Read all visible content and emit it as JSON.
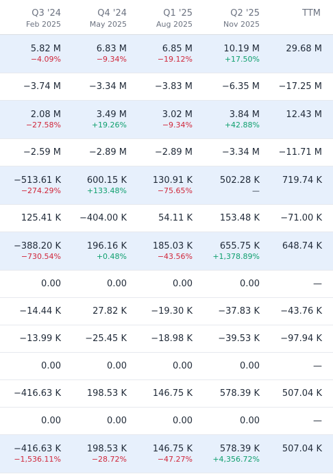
{
  "header": [
    {
      "quarter": "Q3 '24",
      "date": "Feb 2025"
    },
    {
      "quarter": "Q4 '24",
      "date": "May 2025"
    },
    {
      "quarter": "Q1 '25",
      "date": "Aug 2025"
    },
    {
      "quarter": "Q2 '25",
      "date": "Nov 2025"
    },
    {
      "quarter": "TTM",
      "date": ""
    }
  ],
  "rows": [
    {
      "shaded": true,
      "values": [
        "5.82 M",
        "6.83 M",
        "6.85 M",
        "10.19 M",
        "29.68 M"
      ],
      "changes": [
        "−4.09%",
        "−9.34%",
        "−19.12%",
        "+17.50%",
        ""
      ],
      "change_tones": [
        "neg",
        "neg",
        "neg",
        "pos",
        ""
      ]
    },
    {
      "shaded": false,
      "values": [
        "−3.74 M",
        "−3.34 M",
        "−3.83 M",
        "−6.35 M",
        "−17.25 M"
      ]
    },
    {
      "shaded": true,
      "values": [
        "2.08 M",
        "3.49 M",
        "3.02 M",
        "3.84 M",
        "12.43 M"
      ],
      "changes": [
        "−27.58%",
        "+19.26%",
        "−9.34%",
        "+42.88%",
        ""
      ],
      "change_tones": [
        "neg",
        "pos",
        "neg",
        "pos",
        ""
      ]
    },
    {
      "shaded": false,
      "values": [
        "−2.59 M",
        "−2.89 M",
        "−2.89 M",
        "−3.34 M",
        "−11.71 M"
      ]
    },
    {
      "shaded": true,
      "values": [
        "−513.61 K",
        "600.15 K",
        "130.91 K",
        "502.28 K",
        "719.74 K"
      ],
      "changes": [
        "−274.29%",
        "+133.48%",
        "−75.65%",
        "—",
        ""
      ],
      "change_tones": [
        "neg",
        "pos",
        "neg",
        "nil",
        ""
      ]
    },
    {
      "shaded": false,
      "values": [
        "125.41 K",
        "−404.00 K",
        "54.11 K",
        "153.48 K",
        "−71.00 K"
      ]
    },
    {
      "shaded": true,
      "values": [
        "−388.20 K",
        "196.16 K",
        "185.03 K",
        "655.75 K",
        "648.74 K"
      ],
      "changes": [
        "−730.54%",
        "+0.48%",
        "−43.56%",
        "+1,378.89%",
        ""
      ],
      "change_tones": [
        "neg",
        "pos",
        "neg",
        "pos",
        ""
      ]
    },
    {
      "shaded": false,
      "values": [
        "0.00",
        "0.00",
        "0.00",
        "0.00",
        "—"
      ]
    },
    {
      "shaded": false,
      "values": [
        "−14.44 K",
        "27.82 K",
        "−19.30 K",
        "−37.83 K",
        "−43.76 K"
      ]
    },
    {
      "shaded": false,
      "values": [
        "−13.99 K",
        "−25.45 K",
        "−18.98 K",
        "−39.53 K",
        "−97.94 K"
      ]
    },
    {
      "shaded": false,
      "values": [
        "0.00",
        "0.00",
        "0.00",
        "0.00",
        "—"
      ]
    },
    {
      "shaded": false,
      "values": [
        "−416.63 K",
        "198.53 K",
        "146.75 K",
        "578.39 K",
        "507.04 K"
      ]
    },
    {
      "shaded": false,
      "values": [
        "0.00",
        "0.00",
        "0.00",
        "0.00",
        "—"
      ]
    },
    {
      "shaded": true,
      "values": [
        "−416.63 K",
        "198.53 K",
        "146.75 K",
        "578.39 K",
        "507.04 K"
      ],
      "changes": [
        "−1,536.11%",
        "−28.72%",
        "−47.27%",
        "+4,356.72%",
        ""
      ],
      "change_tones": [
        "neg",
        "neg",
        "neg",
        "pos",
        ""
      ]
    }
  ]
}
